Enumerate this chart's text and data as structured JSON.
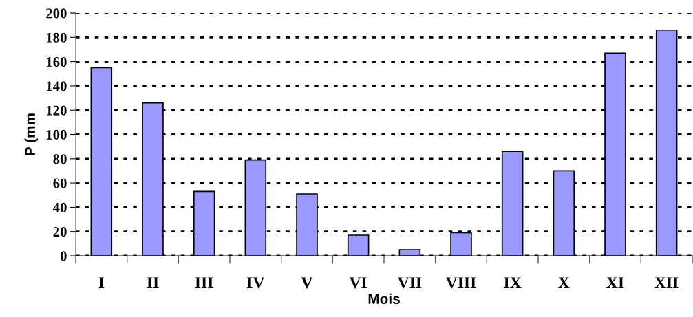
{
  "chart_data": {
    "type": "bar",
    "xlabel": "Mois",
    "ylabel": "P (mm",
    "categories": [
      "I",
      "II",
      "III",
      "IV",
      "V",
      "VI",
      "VII",
      "VIII",
      "IX",
      "X",
      "XI",
      "XII"
    ],
    "values": [
      155,
      126,
      53,
      79,
      51,
      17,
      5,
      19,
      86,
      70,
      167,
      186
    ],
    "color": "#9999ff",
    "ylim": [
      0,
      200
    ],
    "yticks": [
      0,
      20,
      40,
      60,
      80,
      100,
      120,
      140,
      160,
      180,
      200
    ],
    "grid": "y",
    "legend": false
  }
}
